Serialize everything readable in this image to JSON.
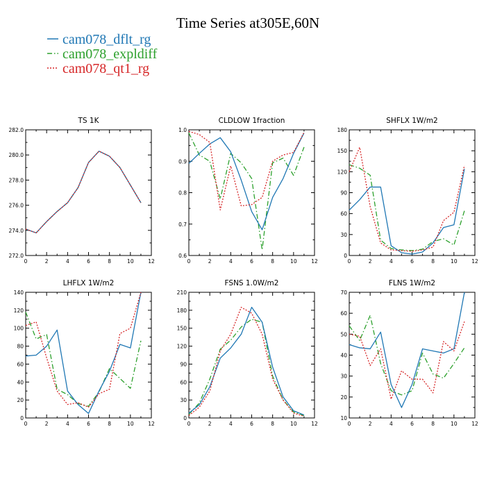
{
  "figure": {
    "title": "Time Series at305E,60N"
  },
  "colors": {
    "cam078_dflt_rg": "#1f77b4",
    "cam078_expldiff": "#2ca02c",
    "cam078_qt1_rg": "#d62728"
  },
  "legend": [
    {
      "name": "cam078_dflt_rg",
      "color": "#1f77b4",
      "dash": "solid"
    },
    {
      "name": "cam078_expldiff",
      "color": "#2ca02c",
      "dash": "dashdot"
    },
    {
      "name": "cam078_qt1_rg",
      "color": "#d62728",
      "dash": "dotted"
    }
  ],
  "chart_data": [
    {
      "type": "line",
      "title": "TS   1K",
      "x": [
        0,
        1,
        2,
        3,
        4,
        5,
        6,
        7,
        8,
        9,
        10,
        11
      ],
      "xlim": [
        0,
        12
      ],
      "xticks": [
        0,
        2,
        4,
        6,
        8,
        10,
        12
      ],
      "xtick_labels": [
        "0",
        "2",
        "4",
        "6",
        "8",
        "10",
        "12"
      ],
      "ylim": [
        272,
        282
      ],
      "yticks": [
        272,
        274,
        276,
        278,
        280,
        282
      ],
      "ytick_labels": [
        "272.0",
        "274.0",
        "276.0",
        "278.0",
        "280.0",
        "282.0"
      ],
      "series": [
        {
          "name": "cam078_dflt_rg",
          "values": [
            274.1,
            273.8,
            274.7,
            275.5,
            276.2,
            277.4,
            279.4,
            280.3,
            279.9,
            279.0,
            277.6,
            276.2
          ]
        },
        {
          "name": "cam078_expldiff",
          "values": [
            274.1,
            273.8,
            274.7,
            275.5,
            276.2,
            277.4,
            279.4,
            280.3,
            279.9,
            279.0,
            277.6,
            276.2
          ]
        },
        {
          "name": "cam078_qt1_rg",
          "values": [
            274.1,
            273.8,
            274.7,
            275.5,
            276.2,
            277.4,
            279.4,
            280.3,
            279.9,
            279.0,
            277.6,
            276.2
          ]
        }
      ]
    },
    {
      "type": "line",
      "title": "CLDLOW   1fraction",
      "x": [
        0,
        1,
        2,
        3,
        4,
        5,
        6,
        7,
        8,
        9,
        10,
        11
      ],
      "xlim": [
        0,
        12
      ],
      "xticks": [
        0,
        2,
        4,
        6,
        8,
        10,
        12
      ],
      "xtick_labels": [
        "0",
        "2",
        "4",
        "6",
        "8",
        "10",
        "12"
      ],
      "ylim": [
        0.6,
        1.0
      ],
      "yticks": [
        0.6,
        0.7,
        0.8,
        0.9,
        1.0
      ],
      "ytick_labels": [
        "0.6",
        "0.7",
        "0.8",
        "0.9",
        "1.0"
      ],
      "series": [
        {
          "name": "cam078_dflt_rg",
          "values": [
            0.893,
            0.925,
            0.955,
            0.975,
            0.93,
            0.84,
            0.74,
            0.682,
            0.785,
            0.845,
            0.925,
            0.99
          ]
        },
        {
          "name": "cam078_expldiff",
          "values": [
            0.99,
            0.92,
            0.9,
            0.78,
            0.925,
            0.895,
            0.845,
            0.618,
            0.895,
            0.91,
            0.855,
            0.945
          ]
        },
        {
          "name": "cam078_qt1_rg",
          "values": [
            0.995,
            0.985,
            0.96,
            0.745,
            0.885,
            0.758,
            0.762,
            0.785,
            0.9,
            0.92,
            0.928,
            0.992
          ]
        }
      ]
    },
    {
      "type": "line",
      "title": "SHFLX   1W/m2",
      "x": [
        0,
        1,
        2,
        3,
        4,
        5,
        6,
        7,
        8,
        9,
        10,
        11
      ],
      "xlim": [
        0,
        12
      ],
      "xticks": [
        0,
        2,
        4,
        6,
        8,
        10,
        12
      ],
      "xtick_labels": [
        "0",
        "2",
        "4",
        "6",
        "8",
        "10",
        "12"
      ],
      "ylim": [
        0,
        180
      ],
      "yticks": [
        0,
        30,
        60,
        90,
        120,
        150,
        180
      ],
      "ytick_labels": [
        "0",
        "30",
        "60",
        "90",
        "120",
        "150",
        "180"
      ],
      "series": [
        {
          "name": "cam078_dflt_rg",
          "values": [
            65,
            80,
            98,
            98,
            14,
            4,
            2,
            5,
            18,
            40,
            44,
            124
          ]
        },
        {
          "name": "cam078_expldiff",
          "values": [
            130,
            125,
            115,
            22,
            10,
            8,
            7,
            9,
            20,
            24,
            15,
            64
          ]
        },
        {
          "name": "cam078_qt1_rg",
          "values": [
            120,
            155,
            70,
            18,
            8,
            7,
            6,
            8,
            12,
            50,
            62,
            129
          ]
        }
      ]
    },
    {
      "type": "line",
      "title": "LHFLX   1W/m2",
      "x": [
        0,
        1,
        2,
        3,
        4,
        5,
        6,
        7,
        8,
        9,
        10,
        11
      ],
      "xlim": [
        0,
        12
      ],
      "xticks": [
        0,
        2,
        4,
        6,
        8,
        10,
        12
      ],
      "xtick_labels": [
        "0",
        "2",
        "4",
        "6",
        "8",
        "10",
        "12"
      ],
      "ylim": [
        0,
        140
      ],
      "yticks": [
        0,
        20,
        40,
        60,
        80,
        100,
        120,
        140
      ],
      "ytick_labels": [
        "0",
        "20",
        "40",
        "60",
        "80",
        "100",
        "120",
        "140"
      ],
      "series": [
        {
          "name": "cam078_dflt_rg",
          "values": [
            69,
            70,
            80,
            98,
            30,
            15,
            5,
            30,
            52,
            82,
            78,
            140
          ]
        },
        {
          "name": "cam078_expldiff",
          "values": [
            118,
            88,
            93,
            32,
            26,
            16,
            13,
            29,
            55,
            44,
            33,
            86
          ]
        },
        {
          "name": "cam078_qt1_rg",
          "values": [
            103,
            107,
            67,
            30,
            15,
            17,
            12,
            27,
            32,
            94,
            100,
            140
          ]
        }
      ]
    },
    {
      "type": "line",
      "title": "FSNS   1.0W/m2",
      "x": [
        0,
        1,
        2,
        3,
        4,
        5,
        6,
        7,
        8,
        9,
        10,
        11
      ],
      "xlim": [
        0,
        12
      ],
      "xticks": [
        0,
        2,
        4,
        6,
        8,
        10,
        12
      ],
      "xtick_labels": [
        "0",
        "2",
        "4",
        "6",
        "8",
        "10",
        "12"
      ],
      "ylim": [
        0,
        210
      ],
      "yticks": [
        0,
        30,
        60,
        90,
        120,
        150,
        180,
        210
      ],
      "ytick_labels": [
        "0",
        "30",
        "60",
        "90",
        "120",
        "150",
        "180",
        "210"
      ],
      "series": [
        {
          "name": "cam078_dflt_rg",
          "values": [
            8,
            22,
            52,
            100,
            117,
            140,
            185,
            160,
            85,
            35,
            12,
            5
          ]
        },
        {
          "name": "cam078_expldiff",
          "values": [
            6,
            25,
            65,
            115,
            130,
            152,
            165,
            160,
            70,
            30,
            10,
            4
          ]
        },
        {
          "name": "cam078_qt1_rg",
          "values": [
            4,
            18,
            45,
            112,
            140,
            185,
            175,
            140,
            65,
            30,
            8,
            3
          ]
        }
      ]
    },
    {
      "type": "line",
      "title": "FLNS   1W/m2",
      "x": [
        0,
        1,
        2,
        3,
        4,
        5,
        6,
        7,
        8,
        9,
        10,
        11
      ],
      "xlim": [
        0,
        12
      ],
      "xticks": [
        0,
        2,
        4,
        6,
        8,
        10,
        12
      ],
      "xtick_labels": [
        "0",
        "2",
        "4",
        "6",
        "8",
        "10",
        "12"
      ],
      "ylim": [
        10,
        70
      ],
      "yticks": [
        10,
        20,
        30,
        40,
        50,
        60,
        70
      ],
      "ytick_labels": [
        "10",
        "20",
        "30",
        "40",
        "50",
        "60",
        "70"
      ],
      "series": [
        {
          "name": "cam078_dflt_rg",
          "values": [
            45,
            43.5,
            43,
            51,
            26,
            15,
            26,
            43,
            42,
            41,
            43,
            70
          ]
        },
        {
          "name": "cam078_expldiff",
          "values": [
            54,
            47,
            59,
            36,
            23,
            21,
            23,
            41,
            31,
            29,
            36,
            43.5
          ]
        },
        {
          "name": "cam078_qt1_rg",
          "values": [
            50,
            49,
            35,
            43,
            19,
            32.5,
            28.5,
            28.5,
            22,
            46.5,
            42,
            56
          ]
        }
      ]
    }
  ]
}
